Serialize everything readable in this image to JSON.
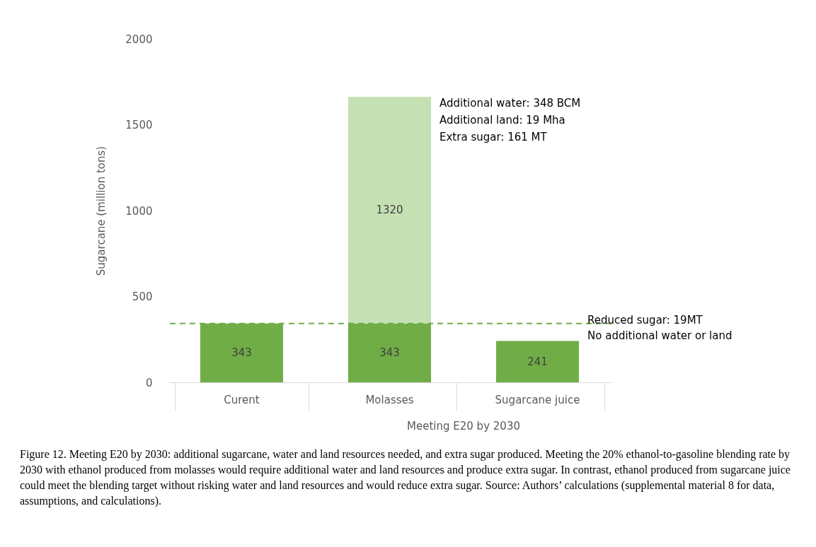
{
  "chart_data": {
    "type": "bar",
    "ylabel": "Sugarcane (million tons)",
    "categories": [
      "Curent",
      "Molasses",
      "Sugarcane juice"
    ],
    "stacked": true,
    "series": [
      {
        "color": "#70ad47",
        "values": [
          343,
          343,
          241
        ]
      },
      {
        "color": "#c5e0b3",
        "values": [
          null,
          1320,
          null
        ]
      }
    ],
    "data_labels": true,
    "ylim": [
      0,
      2000
    ],
    "yticks": [
      0,
      500,
      1000,
      1500,
      2000
    ],
    "ref_lines": [
      {
        "axis": "y",
        "value": 343,
        "color": "#70ad47",
        "line_style": "dashed"
      }
    ],
    "annotations": [
      "Additional water: 348 BCM",
      "Additional land: 19 Mha",
      "Extra sugar: 161 MT",
      "Reduced sugar: 19MT",
      "No additional water or land",
      "Meeting E20 by 2030",
      "Figure 12. Meeting E20 by 2030: additional sugarcane, water and land resources needed, and extra sugar produced. Meeting the 20% ethanol-to-gasoline blending rate by 2030 with ethanol produced from molasses would require additional water and land resources and produce extra sugar. In contrast, ethanol produced from sugarcane juice could meet the blending target without risking water and land resources and would reduce extra sugar. Source: Authors’ calculations (supplemental material 8 for data, assumptions, and calculations)."
    ]
  }
}
